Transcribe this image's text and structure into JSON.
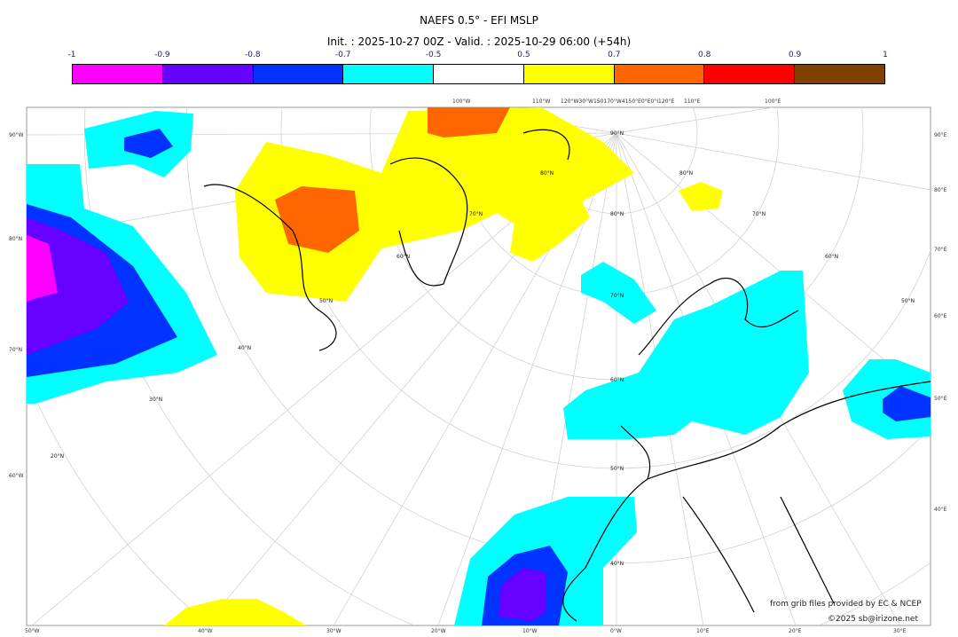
{
  "title": "NAEFS 0.5° - EFI MSLP",
  "subtitle": "Init. : 2025-10-27 00Z - Valid. : 2025-10-29 06:00 (+54h)",
  "colorbar": {
    "ticks": [
      "-1",
      "-0.9",
      "-0.8",
      "-0.7",
      "-0.5",
      "0.5",
      "0.7",
      "0.8",
      "0.9",
      "1"
    ],
    "colors": [
      "#ff00ff",
      "#6600ff",
      "#0033ff",
      "#00ffff",
      "#ffffff",
      "#ffff00",
      "#ff6600",
      "#ff0000",
      "#804000"
    ]
  },
  "axes": {
    "left": [
      "90°W",
      "80°N",
      "70°N",
      "60°W"
    ],
    "right": [
      "90°E",
      "80°E",
      "70°E",
      "60°E",
      "50°E",
      "40°E"
    ],
    "top": [
      "100°W",
      "110°W",
      "120°W30°W150170°W4150°E0°E0°I120°E",
      "110°E",
      "100°E"
    ],
    "bottom": [
      "50°W",
      "40°W",
      "30°W",
      "20°W",
      "10°W",
      "0°W",
      "10°E",
      "20°E",
      "30°E"
    ]
  },
  "grid_labels": [
    "90°N",
    "80°N",
    "80°N",
    "80°N",
    "70°N",
    "70°N",
    "70°N",
    "60°N",
    "60°N",
    "60°N",
    "50°N",
    "50°N",
    "50°N",
    "40°N",
    "40°N",
    "30°N",
    "20°N"
  ],
  "credits": {
    "source": "from grib files provided by EC & NCEP",
    "copyright": "©2025 sb@irizone.net"
  }
}
